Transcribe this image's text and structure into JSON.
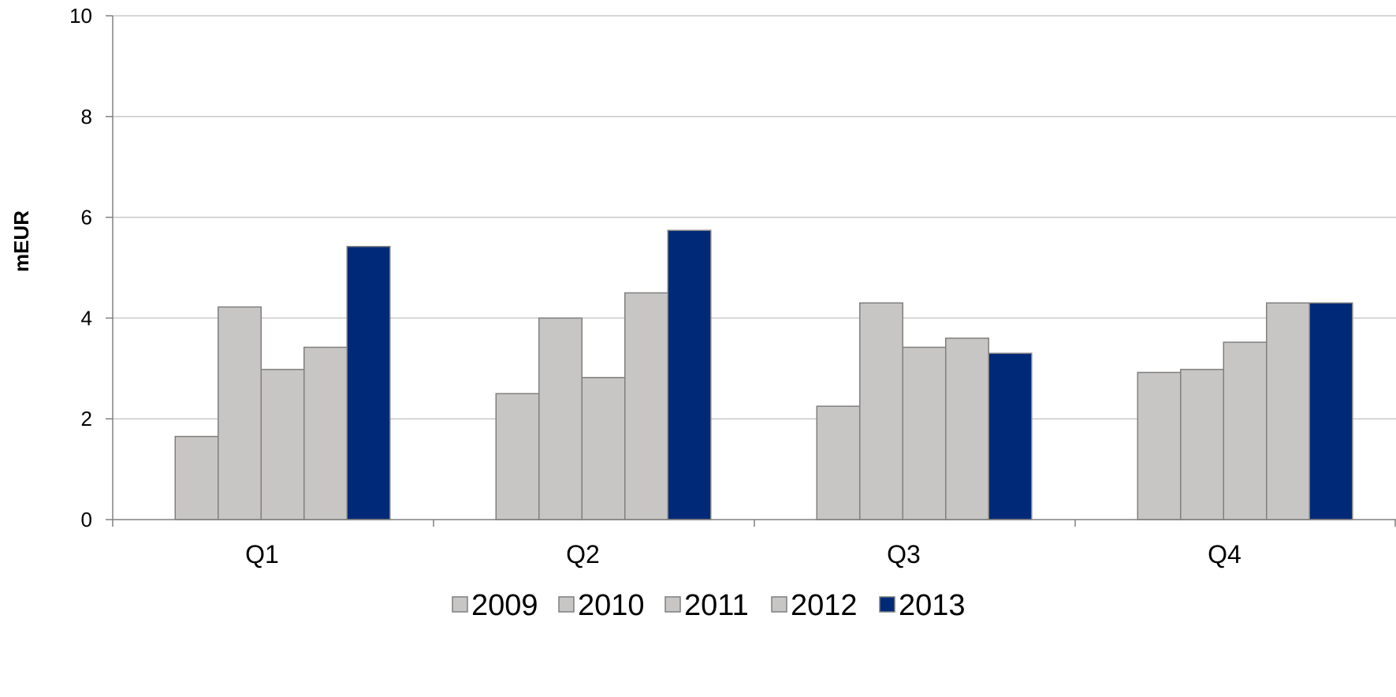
{
  "chart_data": {
    "type": "bar",
    "title": "",
    "xlabel": "",
    "ylabel": "mEUR",
    "ylim": [
      0,
      10
    ],
    "yticks": [
      "0",
      "2",
      "4",
      "6",
      "8",
      "10"
    ],
    "grid": true,
    "legend_position": "bottom",
    "categories": [
      "Q1",
      "Q2",
      "Q3",
      "Q4"
    ],
    "series": [
      {
        "name": "2009",
        "color": "#c8c6c4",
        "values": [
          1.65,
          2.5,
          2.25,
          2.92
        ]
      },
      {
        "name": "2010",
        "color": "#c8c6c4",
        "values": [
          4.22,
          4.0,
          4.3,
          2.98
        ]
      },
      {
        "name": "2011",
        "color": "#c8c6c4",
        "values": [
          2.98,
          2.82,
          3.42,
          3.52
        ]
      },
      {
        "name": "2012",
        "color": "#c8c6c4",
        "values": [
          3.42,
          4.5,
          3.6,
          4.3
        ]
      },
      {
        "name": "2013",
        "color": "#002a78",
        "values": [
          5.42,
          5.74,
          3.3,
          4.3
        ]
      }
    ]
  }
}
